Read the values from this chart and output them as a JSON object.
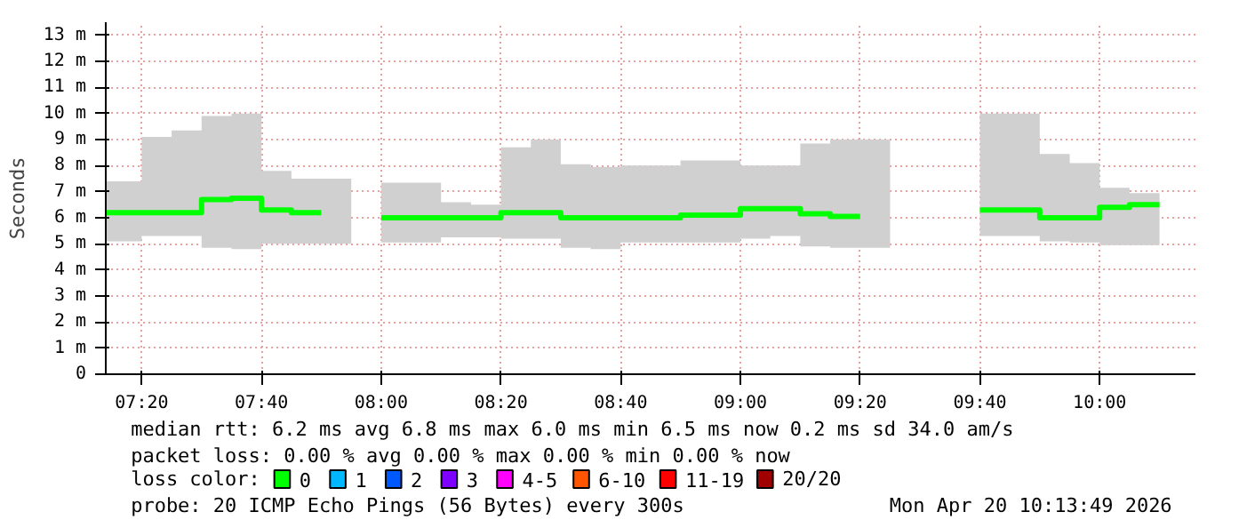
{
  "chart_data": {
    "type": "step",
    "ylabel": "Seconds",
    "x": [
      7.2333,
      7.3333,
      7.4167,
      7.5,
      7.5833,
      7.6667,
      7.75,
      7.8333,
      7.9167,
      8.0,
      8.0833,
      8.1667,
      8.25,
      8.3333,
      8.4167,
      8.5,
      8.5833,
      8.6667,
      8.75,
      8.8333,
      8.9167,
      9.0,
      9.0833,
      9.1667,
      9.25,
      9.3333,
      9.4167,
      9.5,
      9.5833,
      9.6667,
      9.75,
      9.8333,
      9.9167,
      10.0,
      10.0833,
      10.1667
    ],
    "series": [
      {
        "name": "0",
        "color": "#00ff00",
        "values": [
          6.2,
          6.2,
          6.2,
          6.7,
          6.75,
          6.3,
          6.2,
          6.2,
          null,
          6.0,
          6.0,
          6.0,
          6.0,
          6.2,
          6.2,
          6.0,
          6.0,
          6.0,
          6.0,
          6.1,
          6.1,
          6.35,
          6.35,
          6.15,
          6.05,
          6.05,
          null,
          null,
          null,
          6.3,
          6.3,
          6.0,
          6.0,
          6.4,
          6.5,
          6.5
        ],
        "lower": [
          5.1,
          5.3,
          5.3,
          4.85,
          4.8,
          5.0,
          5.0,
          5.0,
          null,
          5.05,
          5.05,
          5.25,
          5.25,
          5.2,
          5.2,
          4.85,
          4.8,
          5.05,
          5.05,
          5.05,
          5.05,
          5.2,
          5.3,
          4.9,
          4.85,
          4.85,
          null,
          null,
          null,
          5.3,
          5.3,
          5.1,
          5.05,
          4.95,
          4.95,
          4.95
        ],
        "upper": [
          7.4,
          9.1,
          9.35,
          9.9,
          10.0,
          7.8,
          7.5,
          7.5,
          null,
          7.35,
          7.35,
          6.6,
          6.5,
          8.7,
          9.0,
          8.05,
          7.95,
          8.0,
          8.0,
          8.2,
          8.2,
          8.0,
          8.0,
          8.85,
          9.0,
          9.0,
          null,
          null,
          null,
          10.0,
          10.0,
          8.45,
          8.1,
          7.15,
          6.95,
          6.95
        ]
      },
      {
        "name": "1",
        "color": "#00b8ff",
        "values": [
          null,
          null,
          null,
          null,
          null,
          null,
          null,
          null,
          null,
          null,
          null,
          null,
          null,
          null,
          null,
          null,
          null,
          null,
          null,
          null,
          null,
          null,
          null,
          null,
          null,
          null,
          null,
          null,
          null,
          null,
          null,
          null,
          null,
          null,
          null,
          null
        ]
      },
      {
        "name": "2",
        "color": "#0059ff",
        "values": [
          null,
          null,
          null,
          null,
          null,
          null,
          null,
          null,
          null,
          null,
          null,
          null,
          null,
          null,
          null,
          null,
          null,
          null,
          null,
          null,
          null,
          null,
          null,
          null,
          null,
          null,
          null,
          null,
          null,
          null,
          null,
          null,
          null,
          null,
          null,
          null
        ]
      },
      {
        "name": "3",
        "color": "#7e00ff",
        "values": [
          null,
          null,
          null,
          null,
          null,
          null,
          null,
          null,
          null,
          null,
          null,
          null,
          null,
          null,
          null,
          null,
          null,
          null,
          null,
          null,
          null,
          null,
          null,
          null,
          null,
          null,
          null,
          null,
          null,
          null,
          null,
          null,
          null,
          null,
          null,
          null
        ]
      },
      {
        "name": "4-5",
        "color": "#ff00ff",
        "values": [
          null,
          null,
          null,
          null,
          null,
          null,
          null,
          null,
          null,
          null,
          null,
          null,
          null,
          null,
          null,
          null,
          null,
          null,
          null,
          null,
          null,
          null,
          null,
          null,
          null,
          null,
          null,
          null,
          null,
          null,
          null,
          null,
          null,
          null,
          null,
          null
        ]
      },
      {
        "name": "6-10",
        "color": "#ff5500",
        "values": [
          null,
          null,
          null,
          null,
          null,
          null,
          null,
          null,
          null,
          null,
          null,
          null,
          null,
          null,
          null,
          null,
          null,
          null,
          null,
          null,
          null,
          null,
          null,
          null,
          null,
          null,
          null,
          null,
          null,
          null,
          null,
          null,
          null,
          null,
          null,
          null
        ]
      },
      {
        "name": "11-19",
        "color": "#ff0000",
        "values": [
          null,
          null,
          null,
          null,
          null,
          null,
          null,
          null,
          null,
          null,
          null,
          null,
          null,
          null,
          null,
          null,
          null,
          null,
          null,
          null,
          null,
          null,
          null,
          null,
          null,
          null,
          null,
          null,
          null,
          null,
          null,
          null,
          null,
          null,
          null,
          null
        ]
      },
      {
        "name": "20/20",
        "color": "#a10000",
        "values": [
          null,
          null,
          null,
          null,
          null,
          null,
          null,
          null,
          null,
          null,
          null,
          null,
          null,
          null,
          null,
          null,
          null,
          null,
          null,
          null,
          null,
          null,
          null,
          null,
          null,
          null,
          null,
          null,
          null,
          null,
          null,
          null,
          null,
          null,
          null,
          null
        ]
      }
    ],
    "legend": "bottom",
    "legend_title": "loss color:",
    "xlim": [
      7.2333,
      10.2667
    ],
    "xticks": [
      {
        "value": 7.3333,
        "label": "07:20"
      },
      {
        "value": 7.6667,
        "label": "07:40"
      },
      {
        "value": 8.0,
        "label": "08:00"
      },
      {
        "value": 8.3333,
        "label": "08:20"
      },
      {
        "value": 8.6667,
        "label": "08:40"
      },
      {
        "value": 9.0,
        "label": "09:00"
      },
      {
        "value": 9.3333,
        "label": "09:20"
      },
      {
        "value": 9.6667,
        "label": "09:40"
      },
      {
        "value": 10.0,
        "label": "10:00"
      }
    ],
    "ylim": [
      0,
      13.5
    ],
    "yticks": [
      0,
      {
        "value": 1,
        "label": "1 m"
      },
      {
        "value": 2,
        "label": "2 m"
      },
      {
        "value": 3,
        "label": "3 m"
      },
      {
        "value": 4,
        "label": "4 m"
      },
      {
        "value": 5,
        "label": "5 m"
      },
      {
        "value": 6,
        "label": "6 m"
      },
      {
        "value": 7,
        "label": "7 m"
      },
      {
        "value": 8,
        "label": "8 m"
      },
      {
        "value": 9,
        "label": "9 m"
      },
      {
        "value": 10,
        "label": "10 m"
      },
      {
        "value": 11,
        "label": "11 m"
      },
      {
        "value": 12,
        "label": "12 m"
      },
      {
        "value": 13,
        "label": "13 m"
      }
    ],
    "grid": true,
    "annotations": [
      "median rtt:  6.2 ms avg  6.8 ms max  6.0 ms min  6.5 ms now  0.2 ms sd  34.0   am/s",
      "packet loss: 0.00 % avg  0.00 % max  0.00 % min  0.00 % now",
      "probe:       20 ICMP Echo Pings (56 Bytes) every 300s",
      "Mon Apr 20 10:13:49 2026"
    ]
  }
}
